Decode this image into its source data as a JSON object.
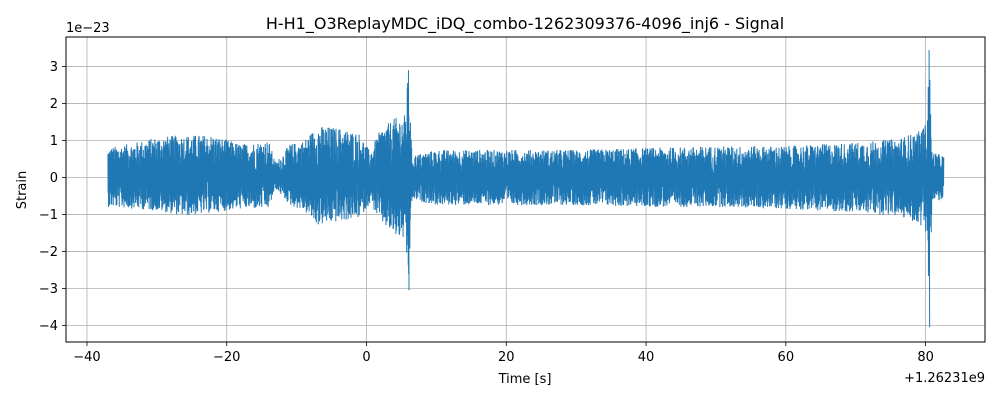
{
  "chart_data": {
    "type": "line",
    "title": "H-H1_O3ReplayMDC_iDQ_combo-1262309376-4096_inj6 - Signal",
    "xlabel": "Time [s]",
    "ylabel": "Strain",
    "x_offset_label": "+1.26231e9",
    "y_scale_label": "1e−23",
    "xlim": [
      -43,
      88.5
    ],
    "ylim": [
      -4.45,
      3.8
    ],
    "x_ticks": [
      -40,
      -20,
      0,
      20,
      40,
      60,
      80
    ],
    "x_tick_labels": [
      "−40",
      "−20",
      "0",
      "20",
      "40",
      "60",
      "80"
    ],
    "y_ticks": [
      -4,
      -3,
      -2,
      -1,
      0,
      1,
      2,
      3
    ],
    "y_tick_labels": [
      "−4",
      "−3",
      "−2",
      "−1",
      "0",
      "1",
      "2",
      "3"
    ],
    "grid": true,
    "line_color": "#1f77b4",
    "series": [
      {
        "values": {
          "x_range": [
            -37,
            82.6
          ],
          "envelope": [
            {
              "x": -37.0,
              "lo": -0.8,
              "hi": 0.8
            },
            {
              "x": -33.0,
              "lo": -0.85,
              "hi": 0.95
            },
            {
              "x": -30.0,
              "lo": -0.9,
              "hi": 1.1
            },
            {
              "x": -26.0,
              "lo": -1.05,
              "hi": 1.15
            },
            {
              "x": -22.0,
              "lo": -0.95,
              "hi": 1.15
            },
            {
              "x": -18.0,
              "lo": -0.85,
              "hi": 0.9
            },
            {
              "x": -14.0,
              "lo": -0.85,
              "hi": 1.0
            },
            {
              "x": -13.0,
              "lo": -0.3,
              "hi": 0.4
            },
            {
              "x": -11.0,
              "lo": -0.75,
              "hi": 0.9
            },
            {
              "x": -9.0,
              "lo": -0.9,
              "hi": 1.0
            },
            {
              "x": -7.0,
              "lo": -1.3,
              "hi": 1.4
            },
            {
              "x": -4.0,
              "lo": -1.2,
              "hi": 1.35
            },
            {
              "x": -1.0,
              "lo": -1.1,
              "hi": 1.2
            },
            {
              "x": 0.5,
              "lo": -0.7,
              "hi": 0.7
            },
            {
              "x": 2.0,
              "lo": -1.2,
              "hi": 1.3
            },
            {
              "x": 4.0,
              "lo": -1.6,
              "hi": 1.6
            },
            {
              "x": 5.5,
              "lo": -1.7,
              "hi": 1.7
            },
            {
              "x": 6.0,
              "lo": -3.05,
              "hi": 2.9
            },
            {
              "x": 6.5,
              "lo": -0.6,
              "hi": 0.6
            },
            {
              "x": 10.0,
              "lo": -0.75,
              "hi": 0.75
            },
            {
              "x": 20.0,
              "lo": -0.75,
              "hi": 0.75
            },
            {
              "x": 30.0,
              "lo": -0.75,
              "hi": 0.75
            },
            {
              "x": 40.0,
              "lo": -0.8,
              "hi": 0.8
            },
            {
              "x": 50.0,
              "lo": -0.8,
              "hi": 0.85
            },
            {
              "x": 60.0,
              "lo": -0.85,
              "hi": 0.85
            },
            {
              "x": 70.0,
              "lo": -0.95,
              "hi": 0.95
            },
            {
              "x": 76.0,
              "lo": -1.05,
              "hi": 1.05
            },
            {
              "x": 79.0,
              "lo": -1.25,
              "hi": 1.25
            },
            {
              "x": 80.2,
              "lo": -1.5,
              "hi": 1.5
            },
            {
              "x": 80.5,
              "lo": -4.05,
              "hi": 3.45
            },
            {
              "x": 80.9,
              "lo": -0.7,
              "hi": 0.7
            },
            {
              "x": 82.6,
              "lo": -0.6,
              "hi": 0.6
            }
          ]
        }
      }
    ]
  }
}
